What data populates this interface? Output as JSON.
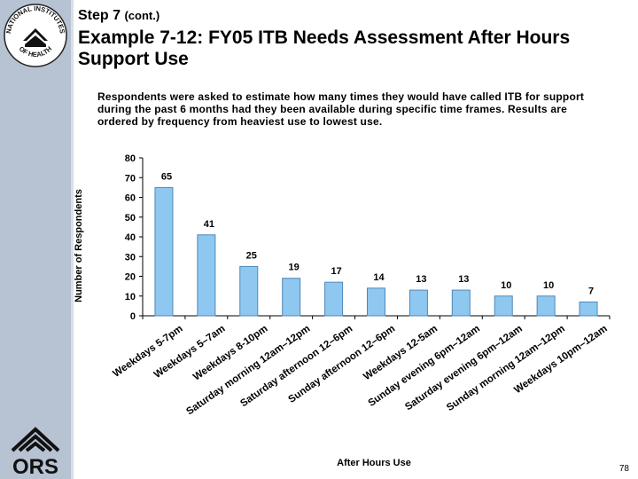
{
  "header": {
    "step": "Step 7",
    "step_suffix": "(cont.)",
    "title": "Example 7-12: FY05 ITB Needs Assessment After Hours Support Use",
    "description": "Respondents were asked to estimate how many times they would have called ITB for support during the past 6 months had they been available during specific time frames.  Results are ordered by frequency from heaviest use to lowest use."
  },
  "logos": {
    "top": {
      "text_top": "NATIONAL INSTITUTES",
      "text_bottom": "OF HEALTH"
    },
    "bottom": {
      "text": "ORS"
    }
  },
  "chart_data": {
    "type": "bar",
    "categories": [
      "Weekdays 5-7pm",
      "Weekdays 5–7am",
      "Weekdays 8-10pm",
      "Saturday morning 12am–12pm",
      "Saturday afternoon 12–6pm",
      "Sunday afternoon 12–6pm",
      "Weekdays 12-5am",
      "Sunday evening 6pm–12am",
      "Saturday evening 6pm–12am",
      "Sunday morning 12am–12pm",
      "Weekdays 10pm–12am"
    ],
    "values": [
      65,
      41,
      25,
      19,
      17,
      14,
      13,
      13,
      10,
      10,
      7
    ],
    "xlabel": "After Hours Use",
    "ylabel": "Number of Respondents",
    "ylim": [
      0,
      80
    ],
    "yticks": [
      0,
      10,
      20,
      30,
      40,
      50,
      60,
      70,
      80
    ],
    "bar_color": "#8ec8f0",
    "bar_stroke": "#4f86b8",
    "grid": false,
    "legend": "none"
  },
  "footer": {
    "page_number": "78"
  }
}
